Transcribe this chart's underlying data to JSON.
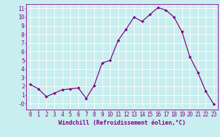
{
  "x": [
    0,
    1,
    2,
    3,
    4,
    5,
    6,
    7,
    8,
    9,
    10,
    11,
    12,
    13,
    14,
    15,
    16,
    17,
    18,
    19,
    20,
    21,
    22,
    23
  ],
  "y": [
    2.2,
    1.7,
    0.8,
    1.2,
    1.6,
    1.7,
    1.8,
    0.6,
    2.1,
    4.7,
    5.0,
    7.3,
    8.6,
    10.0,
    9.5,
    10.3,
    11.1,
    10.8,
    10.0,
    8.3,
    5.4,
    3.6,
    1.4,
    -0.1
  ],
  "line_color": "#800080",
  "marker": "D",
  "marker_size": 2.0,
  "linewidth": 0.9,
  "xlabel": "Windchill (Refroidissement éolien,°C)",
  "xlim": [
    -0.5,
    23.5
  ],
  "ylim": [
    -0.7,
    11.5
  ],
  "yticks": [
    0,
    1,
    2,
    3,
    4,
    5,
    6,
    7,
    8,
    9,
    10,
    11
  ],
  "ytick_labels": [
    "-0",
    "1",
    "2",
    "3",
    "4",
    "5",
    "6",
    "7",
    "8",
    "9",
    "10",
    "11"
  ],
  "xticks": [
    0,
    1,
    2,
    3,
    4,
    5,
    6,
    7,
    8,
    9,
    10,
    11,
    12,
    13,
    14,
    15,
    16,
    17,
    18,
    19,
    20,
    21,
    22,
    23
  ],
  "bg_color": "#c8eef0",
  "grid_color": "#ffffff",
  "tick_color": "#800080",
  "label_color": "#800080",
  "xlabel_fontsize": 6.0,
  "tick_fontsize": 5.5
}
